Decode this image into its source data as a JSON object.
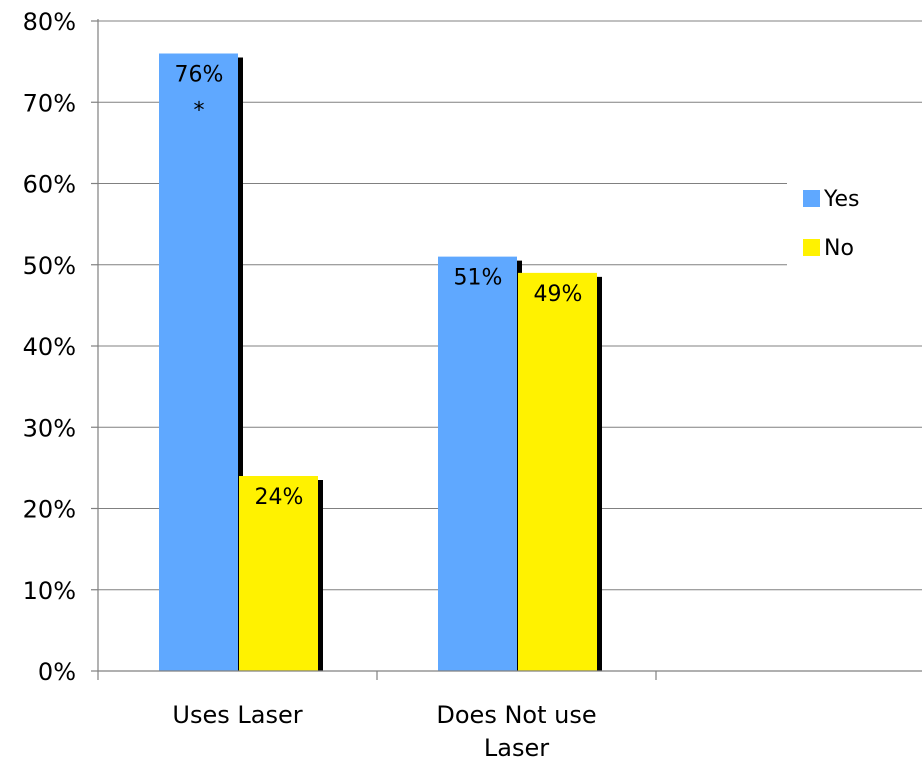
{
  "chart_data": {
    "type": "bar",
    "categories": [
      [
        "Uses Laser"
      ],
      [
        "Does Not use",
        "Laser"
      ]
    ],
    "series": [
      {
        "name": "Yes",
        "values": [
          76,
          51
        ],
        "labels": [
          "76%",
          "51%"
        ],
        "color": "#5fa8ff"
      },
      {
        "name": "No",
        "values": [
          24,
          49
        ],
        "labels": [
          "24%",
          "49%"
        ],
        "color": "#fff200"
      }
    ],
    "annotations": [
      {
        "text": "*",
        "series": 0,
        "category": 0
      }
    ],
    "ylim": [
      0,
      80
    ],
    "ytick_values": [
      0,
      10,
      20,
      30,
      40,
      50,
      60,
      70,
      80
    ],
    "ytick_labels": [
      "0%",
      "10%",
      "20%",
      "30%",
      "40%",
      "50%",
      "60%",
      "70%",
      "80%"
    ],
    "grid": true,
    "legend_position": "right",
    "shadow_color": "#000000"
  }
}
